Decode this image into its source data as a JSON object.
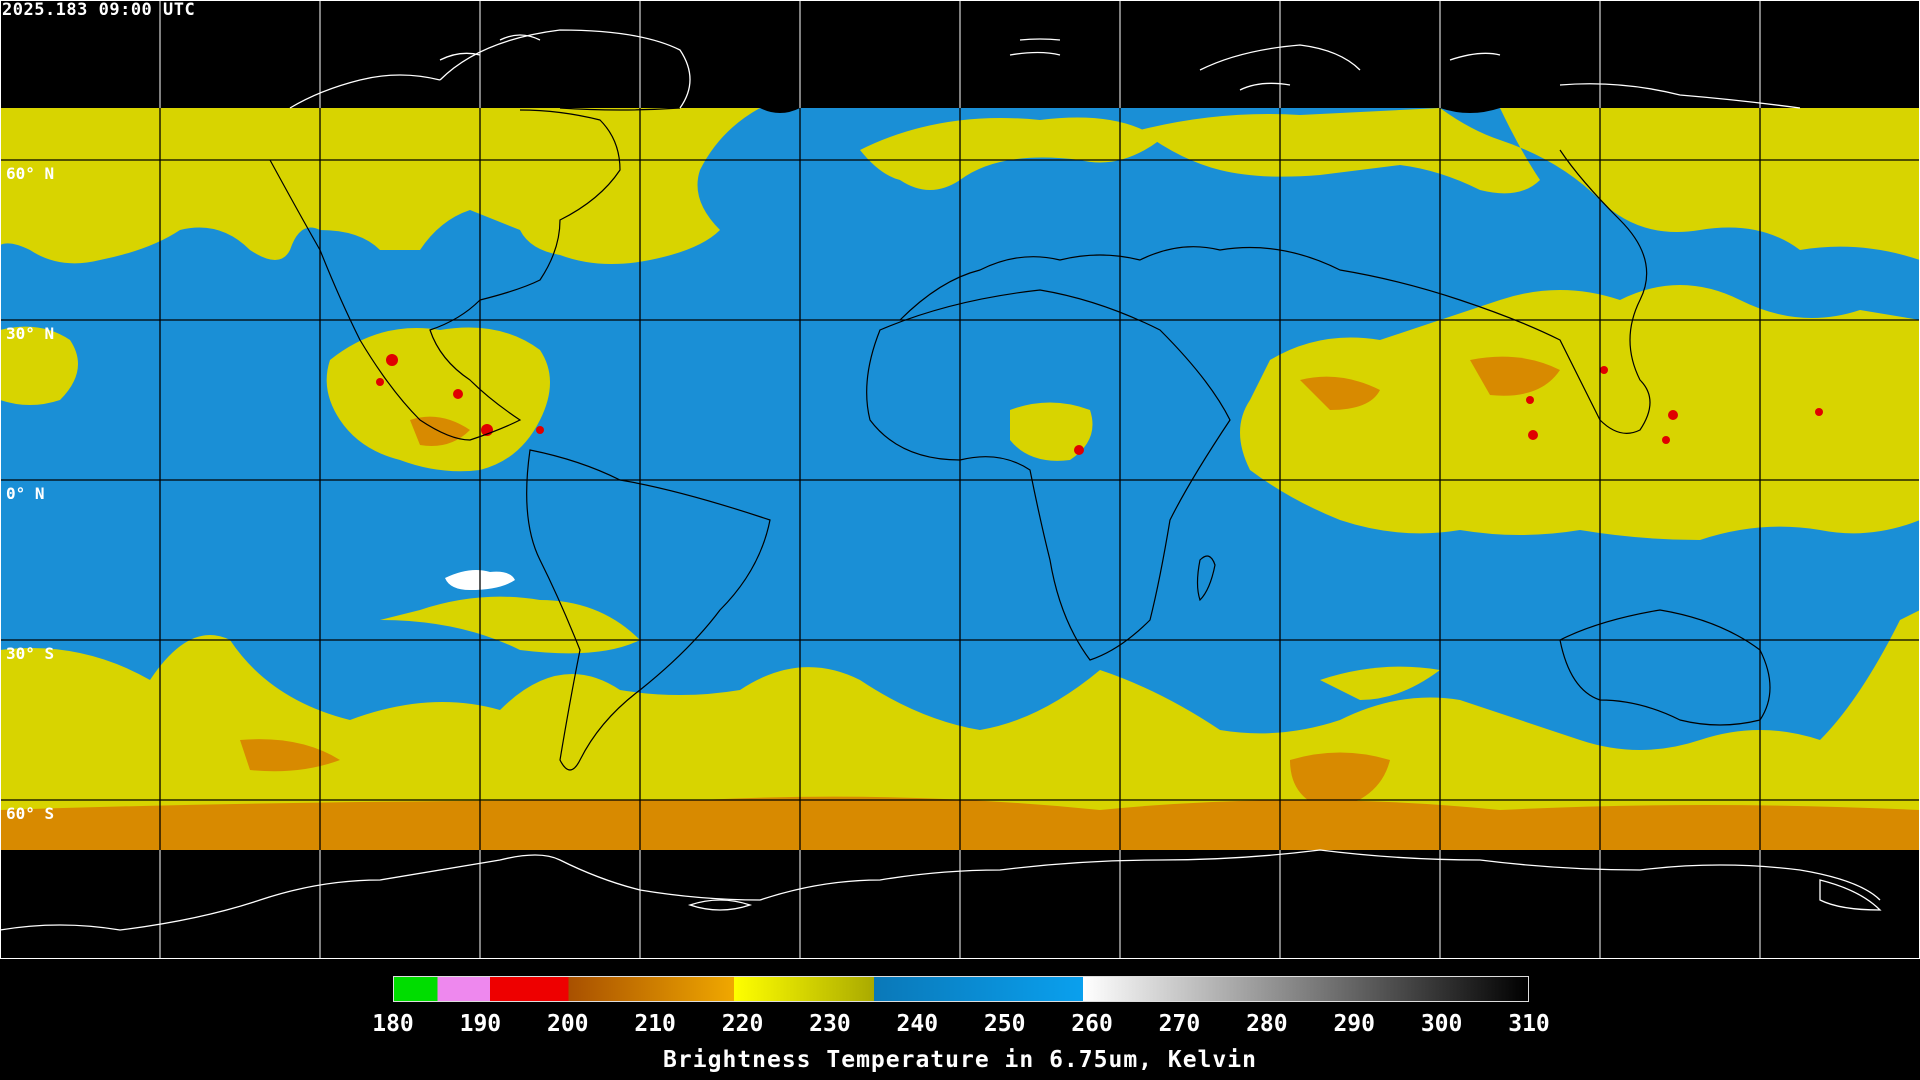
{
  "header": {
    "timestamp": "2025.183 09:00 UTC"
  },
  "map": {
    "projection": "equirectangular",
    "product": "water vapor brightness temperature",
    "latitude_labels": [
      "60° N",
      "30° N",
      "0° N",
      "30° S",
      "60° S"
    ],
    "grid_lines": "every 30° latitude and 30° longitude",
    "coastline_color": "#000000",
    "polar_coastline_color": "#ffffff",
    "no_data_color": "#000000"
  },
  "colorbar": {
    "ticks": [
      "180",
      "190",
      "200",
      "210",
      "220",
      "230",
      "240",
      "250",
      "260",
      "270",
      "280",
      "290",
      "300",
      "310"
    ],
    "title": "Brightness Temperature in 6.75um, Kelvin",
    "palette": [
      {
        "from": 180,
        "to": 185,
        "color": "#00dd00"
      },
      {
        "from": 185,
        "to": 191,
        "color": "#ee88ee"
      },
      {
        "from": 191,
        "to": 200,
        "color": "#ee0000"
      },
      {
        "from": 200,
        "to": 219,
        "color": "#cc7700"
      },
      {
        "from": 219,
        "to": 235,
        "color": "#dddd00"
      },
      {
        "from": 235,
        "to": 259,
        "color": "#1a8fd6"
      },
      {
        "from": 259,
        "to": 310,
        "color": "#ffffff"
      }
    ],
    "range": [
      180,
      310
    ]
  }
}
